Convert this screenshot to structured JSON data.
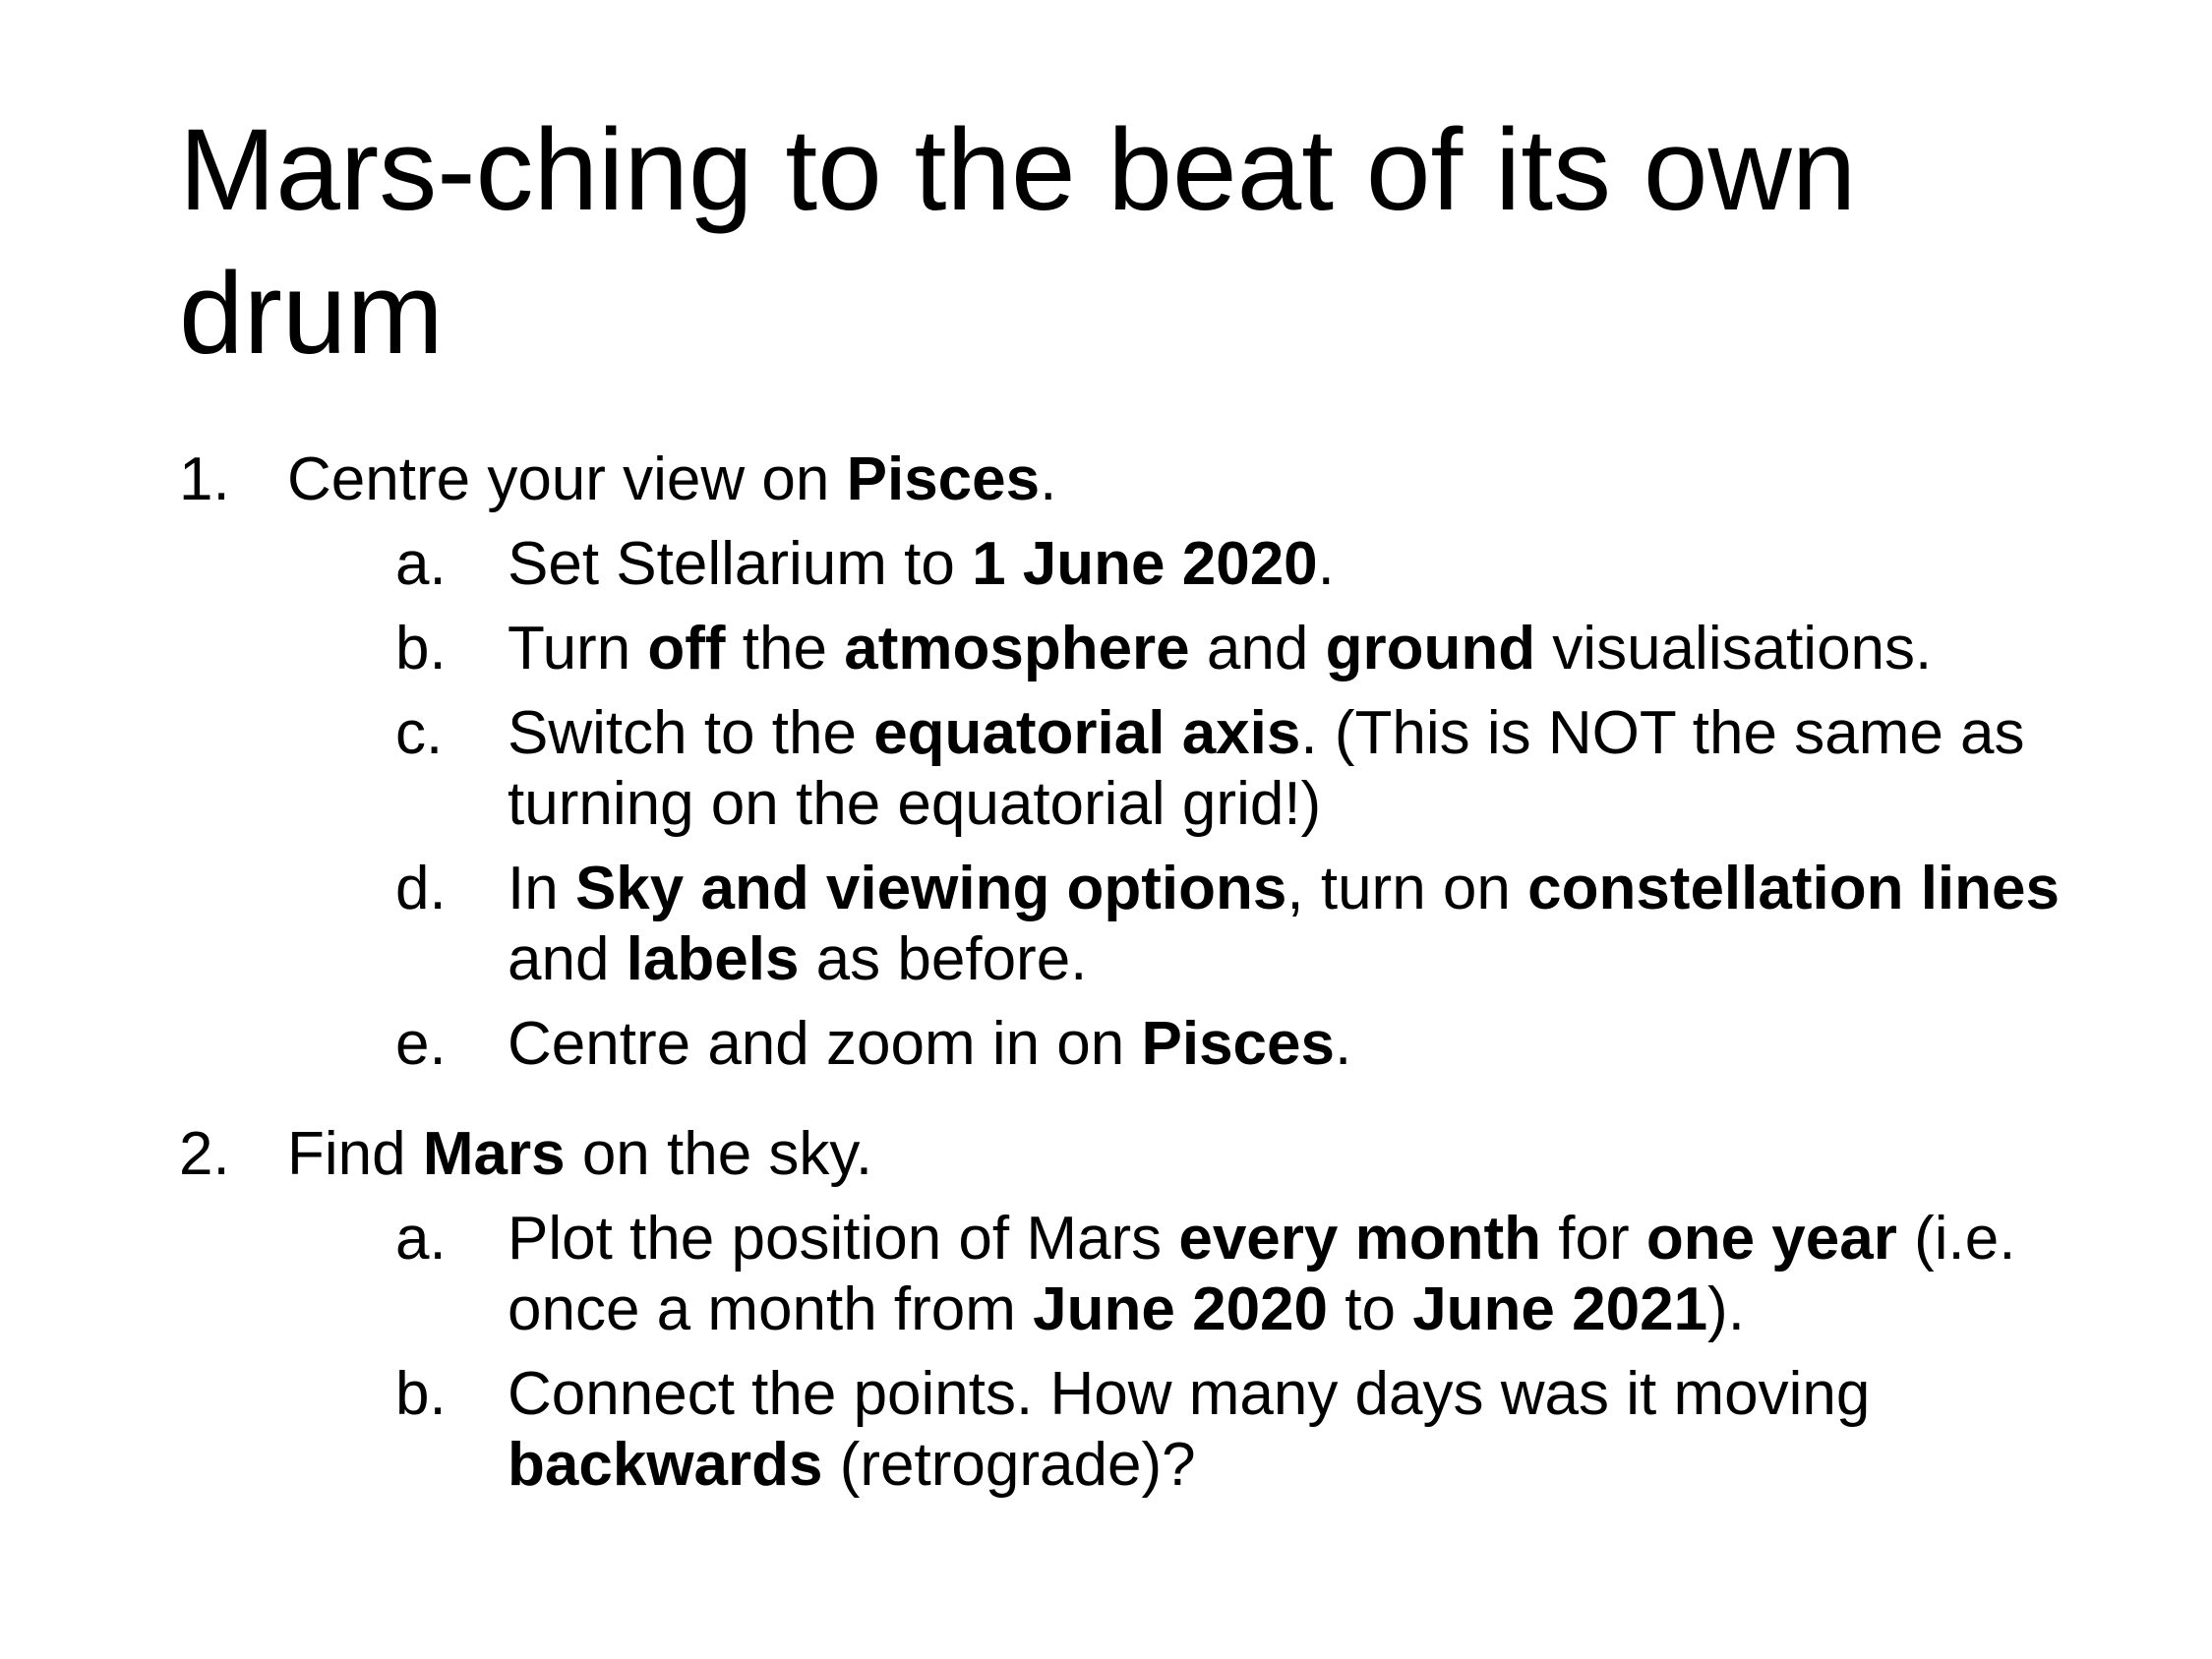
{
  "slide": {
    "title": "Mars-ching to the beat of its own drum",
    "items": [
      {
        "num": "1.",
        "parts": [
          "Centre your view on ",
          "Pisces",
          "."
        ],
        "subitems": [
          {
            "letter": "a.",
            "parts": [
              "Set Stellarium to ",
              "1 June 2020",
              "."
            ]
          },
          {
            "letter": "b.",
            "parts": [
              "Turn ",
              "off",
              " the ",
              "atmosphere",
              " and ",
              "ground",
              " visualisations."
            ]
          },
          {
            "letter": "c.",
            "parts": [
              "Switch to the ",
              "equatorial axis",
              ". (This is NOT the same as turning on the equatorial grid!)"
            ]
          },
          {
            "letter": "d.",
            "parts": [
              "In ",
              "Sky and viewing options",
              ", turn on ",
              "constellation lines",
              " and ",
              "labels",
              " as before."
            ]
          },
          {
            "letter": "e.",
            "parts": [
              "Centre and zoom in on ",
              "Pisces",
              "."
            ]
          }
        ]
      },
      {
        "num": "2.",
        "parts": [
          "Find ",
          "Mars",
          " on the sky."
        ],
        "subitems": [
          {
            "letter": "a.",
            "parts": [
              "Plot the position of Mars ",
              "every month",
              " for ",
              "one year",
              " (i.e. once a month from ",
              "June 2020",
              " to ",
              "June 2021",
              ")."
            ]
          },
          {
            "letter": "b.",
            "parts": [
              "Connect the points. How many days was it moving ",
              "backwards",
              " (retrograde)?"
            ]
          }
        ]
      }
    ]
  }
}
